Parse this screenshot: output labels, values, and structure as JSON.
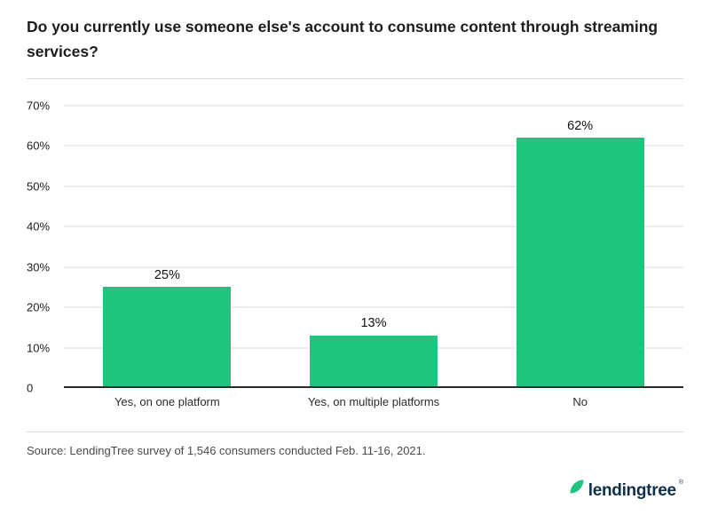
{
  "title": "Do you currently use someone else's account to consume content through streaming services?",
  "source": "Source: LendingTree survey of 1,546 consumers conducted Feb. 11-16, 2021.",
  "logo": {
    "text": "lendingtree",
    "trademark": "®"
  },
  "colors": {
    "bar": "#1fc57e",
    "leaf": "#1fc57e",
    "logo_text": "#0d3049",
    "gridline": "#dcdcdc",
    "baseline": "#2b2b2b"
  },
  "chart_data": {
    "type": "bar",
    "title": "Do you currently use someone else's account to consume content through streaming services?",
    "categories": [
      "Yes, on one platform",
      "Yes, on multiple platforms",
      "No"
    ],
    "values": [
      25,
      13,
      62
    ],
    "value_labels": [
      "25%",
      "13%",
      "62%"
    ],
    "xlabel": "",
    "ylabel": "",
    "ylim": [
      0,
      70
    ],
    "ytick_step": 10,
    "ytick_labels": [
      "0",
      "10%",
      "20%",
      "30%",
      "40%",
      "50%",
      "60%",
      "70%"
    ],
    "grid": true,
    "legend": "none",
    "bar_color": "#1fc57e"
  }
}
